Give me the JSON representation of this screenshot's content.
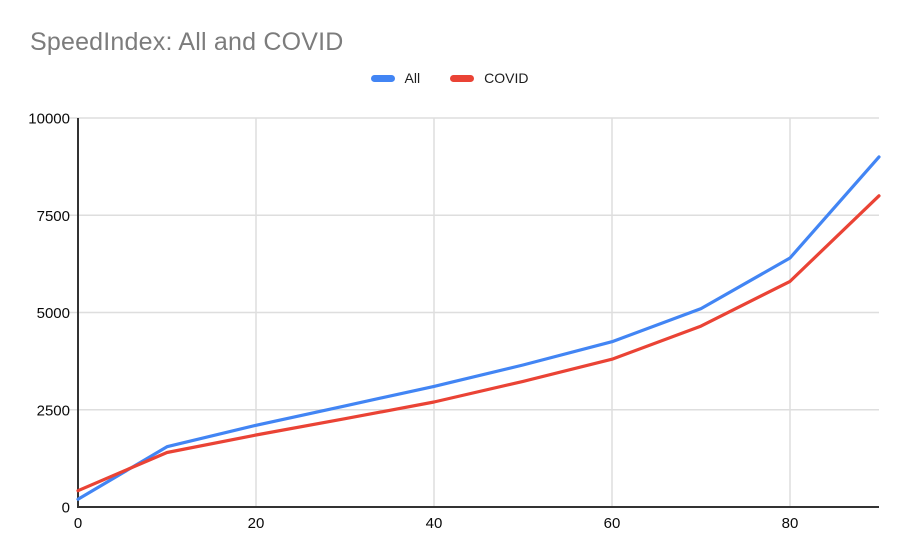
{
  "title": "SpeedIndex: All and COVID",
  "colors": {
    "series_all": "#4285F4",
    "series_covid": "#EA4335",
    "title_text": "#7C7C7C",
    "axis_text": "#0A0A0A",
    "gridline": "#DEDEDE",
    "axis_line": "#333333",
    "background": "#FFFFFF"
  },
  "chart_data": {
    "type": "line",
    "title": "SpeedIndex: All and COVID",
    "xlabel": "",
    "ylabel": "",
    "x": [
      0,
      10,
      20,
      30,
      40,
      50,
      60,
      70,
      80,
      90
    ],
    "series": [
      {
        "name": "All",
        "color": "#4285F4",
        "values": [
          200,
          1550,
          2100,
          2600,
          3100,
          3650,
          4250,
          5100,
          6400,
          9000
        ]
      },
      {
        "name": "COVID",
        "color": "#EA4335",
        "values": [
          420,
          1400,
          1850,
          2270,
          2700,
          3230,
          3800,
          4650,
          5800,
          8000
        ]
      }
    ],
    "xlim": [
      0,
      90
    ],
    "ylim": [
      0,
      10000
    ],
    "x_tick_values": [
      0,
      20,
      40,
      60,
      80
    ],
    "y_tick_values": [
      0,
      2500,
      5000,
      7500,
      10000
    ],
    "x_tick_labels": [
      "0",
      "20",
      "40",
      "60",
      "80"
    ],
    "y_tick_labels": [
      "0",
      "2500",
      "5000",
      "7500",
      "10000"
    ],
    "grid": true,
    "legend_position": "top"
  }
}
